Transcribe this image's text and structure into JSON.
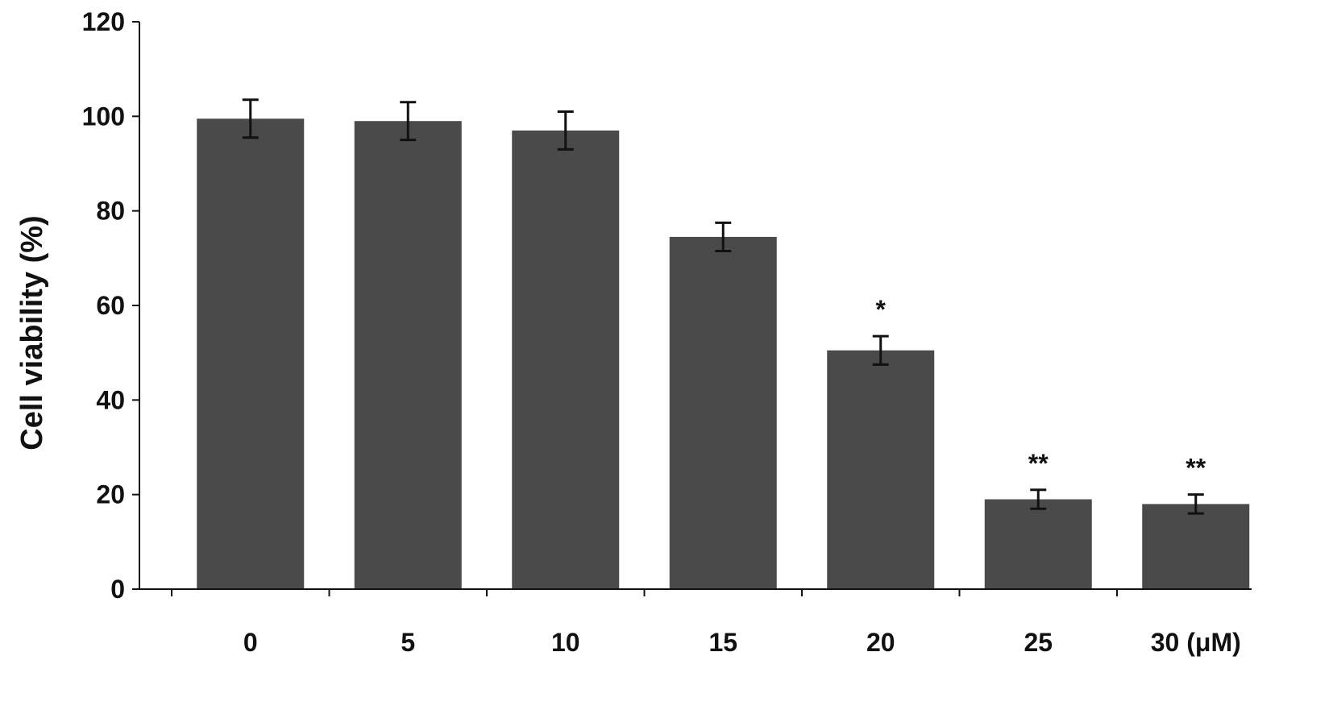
{
  "chart_data": {
    "type": "bar",
    "categories": [
      "0",
      "5",
      "10",
      "15",
      "20",
      "25",
      "30 (μM)"
    ],
    "values": [
      99.5,
      99,
      97,
      74.5,
      50.5,
      19,
      18
    ],
    "error": [
      4,
      4,
      4,
      3,
      3,
      2,
      2
    ],
    "annotations": [
      "",
      "",
      "",
      "",
      "*",
      "**",
      "**"
    ],
    "ylabel": "Cell viability (%)",
    "xlabel": "",
    "ylim": [
      0,
      120
    ],
    "yticks": [
      0,
      20,
      40,
      60,
      80,
      100,
      120
    ],
    "grid": false,
    "bar_color": "#4a4a4a",
    "axis_color": "#111111"
  }
}
